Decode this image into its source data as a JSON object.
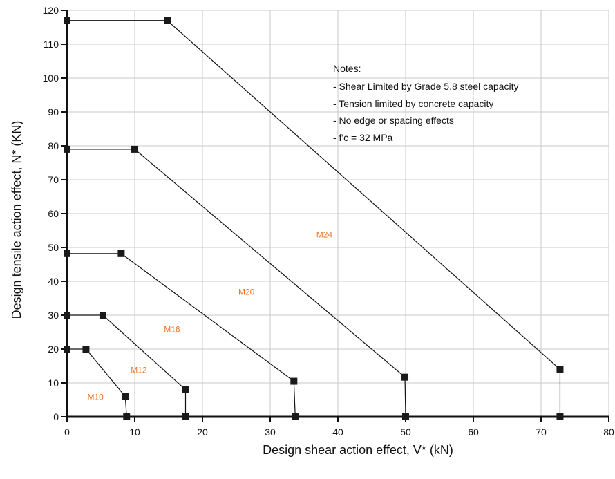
{
  "chart_data": {
    "type": "line",
    "xlabel": "Design shear action effect, V* (kN)",
    "ylabel": "Design tensile action effect, N* (KN)",
    "xlim": [
      0,
      80
    ],
    "ylim": [
      0,
      120
    ],
    "x_ticks": [
      "0",
      "10",
      "20",
      "30",
      "40",
      "50",
      "60",
      "70",
      "80"
    ],
    "y_ticks": [
      "0",
      "10",
      "20",
      "30",
      "40",
      "50",
      "60",
      "70",
      "80",
      "90",
      "100",
      "110",
      "120"
    ],
    "grid": true,
    "label_color": "#e8762d",
    "line_color": "#111111",
    "series": [
      {
        "name": "M10",
        "label_at": [
          4.2,
          5
        ],
        "points": [
          [
            0,
            20
          ],
          [
            2.8,
            20
          ],
          [
            8.6,
            6
          ],
          [
            8.8,
            0
          ]
        ]
      },
      {
        "name": "M12",
        "label_at": [
          10.6,
          13
        ],
        "points": [
          [
            0,
            30
          ],
          [
            5.3,
            30
          ],
          [
            17.5,
            8
          ],
          [
            17.5,
            0
          ]
        ]
      },
      {
        "name": "M16",
        "label_at": [
          15.5,
          25
        ],
        "points": [
          [
            0,
            48.2
          ],
          [
            8,
            48.2
          ],
          [
            33.5,
            10.5
          ],
          [
            33.7,
            0
          ]
        ]
      },
      {
        "name": "M20",
        "label_at": [
          26.5,
          36
        ],
        "points": [
          [
            0,
            79
          ],
          [
            10,
            79
          ],
          [
            49.9,
            11.7
          ],
          [
            50,
            0
          ]
        ]
      },
      {
        "name": "M24",
        "label_at": [
          38,
          53
        ],
        "points": [
          [
            0,
            117
          ],
          [
            14.8,
            117
          ],
          [
            72.8,
            14
          ],
          [
            72.8,
            0
          ]
        ]
      }
    ],
    "notes": [
      "Notes:",
      "- Shear Limited by Grade 5.8 steel capacity",
      "- Tension limited by concrete capacity",
      "- No edge or spacing effects",
      "- f'c = 32 MPa"
    ]
  }
}
